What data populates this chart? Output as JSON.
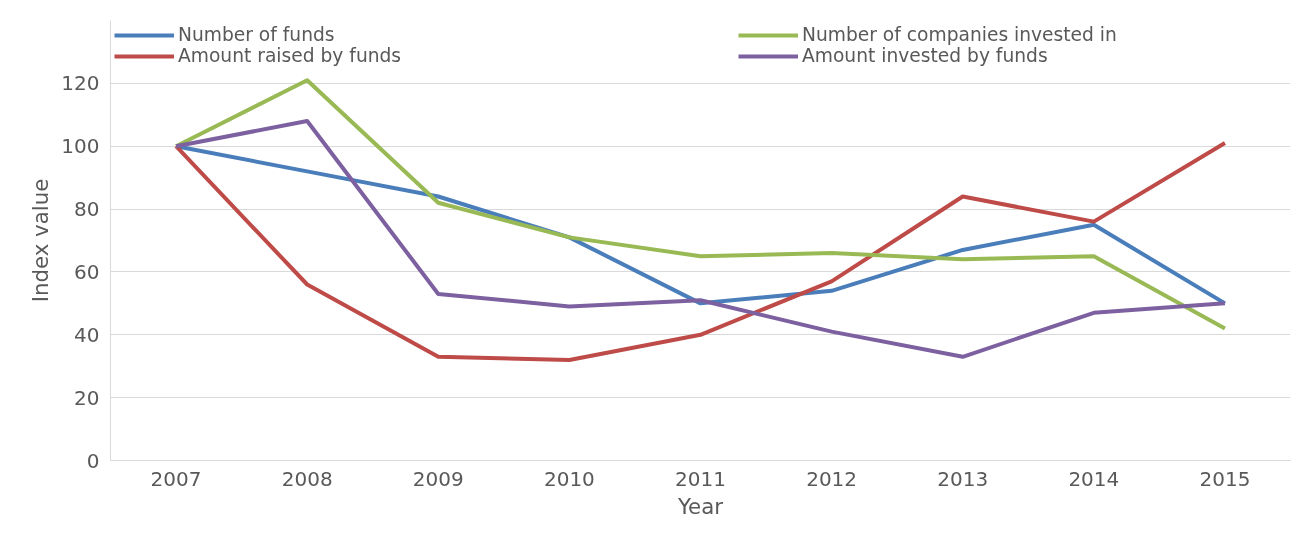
{
  "chart_data": {
    "type": "line",
    "xlabel": "Year",
    "ylabel": "Index value",
    "categories": [
      "2007",
      "2008",
      "2009",
      "2010",
      "2011",
      "2012",
      "2013",
      "2014",
      "2015"
    ],
    "series": [
      {
        "name": "Number of funds",
        "color": "#4a7ebb",
        "values": [
          100,
          92,
          84,
          71,
          50,
          54,
          67,
          75,
          50
        ]
      },
      {
        "name": "Amount raised by funds",
        "color": "#be4b48",
        "values": [
          100,
          56,
          33,
          32,
          40,
          57,
          84,
          76,
          101
        ]
      },
      {
        "name": "Number of companies invested in",
        "color": "#98b954",
        "values": [
          100,
          121,
          82,
          71,
          65,
          66,
          64,
          65,
          42
        ]
      },
      {
        "name": "Amount invested by funds",
        "color": "#7d60a0",
        "values": [
          100,
          108,
          53,
          49,
          51,
          41,
          33,
          47,
          50
        ]
      }
    ],
    "ylim": [
      0,
      140
    ],
    "yticks": [
      0,
      20,
      40,
      60,
      80,
      100,
      120
    ],
    "grid": "y",
    "legend": "top",
    "marker": "none",
    "line_style": "solid"
  }
}
